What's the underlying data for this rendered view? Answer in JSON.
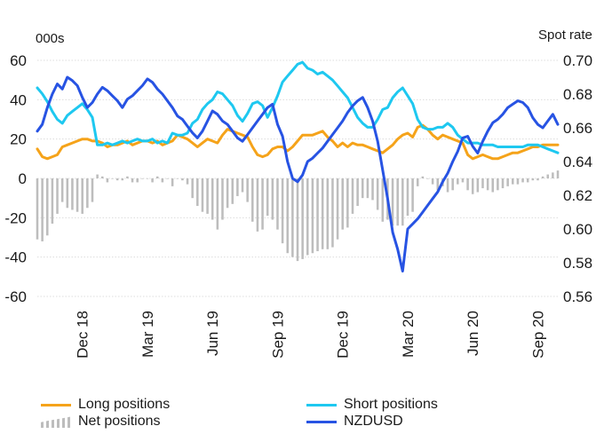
{
  "chart_data": {
    "type": "line",
    "left_axis": {
      "unit_label": "000s",
      "ticks": [
        60,
        40,
        20,
        0,
        -20,
        -40,
        -60
      ],
      "ylim": [
        -60,
        60
      ]
    },
    "right_axis": {
      "unit_label": "Spot rate",
      "ticks": [
        "0.70",
        "0.68",
        "0.66",
        "0.64",
        "0.62",
        "0.60",
        "0.58",
        "0.56"
      ],
      "ylim": [
        0.56,
        0.7
      ]
    },
    "x_labels": [
      "Dec 18",
      "Mar 19",
      "Jun 19",
      "Sep 19",
      "Dec 19",
      "Mar 20",
      "Jun 20",
      "Sep 20"
    ],
    "x_label_index": [
      9,
      22,
      35,
      48,
      61,
      74,
      87,
      100
    ],
    "n_points": 105,
    "series": [
      {
        "name": "Long positions",
        "color": "#f5a31a",
        "axis": "left",
        "kind": "line",
        "values": [
          15,
          11,
          10,
          11,
          12,
          16,
          17,
          18,
          19,
          20,
          20,
          19,
          19,
          18,
          16,
          17,
          17,
          18,
          19,
          17,
          18,
          19,
          19,
          18,
          19,
          17,
          18,
          19,
          22,
          21,
          20,
          18,
          16,
          18,
          20,
          19,
          18,
          22,
          25,
          24,
          23,
          22,
          21,
          16,
          12,
          11,
          12,
          15,
          16,
          16,
          14,
          16,
          19,
          22,
          22,
          22,
          23,
          24,
          21,
          19,
          16,
          18,
          16,
          18,
          17,
          17,
          16,
          15,
          14,
          13,
          15,
          17,
          20,
          22,
          23,
          21,
          26,
          27,
          25,
          22,
          20,
          22,
          21,
          20,
          19,
          18,
          12,
          10,
          11,
          12,
          11,
          10,
          10,
          11,
          12,
          13,
          13,
          14,
          15,
          16,
          16,
          17,
          17,
          17,
          17
        ]
      },
      {
        "name": "Short positions",
        "color": "#1ec8f0",
        "axis": "left",
        "kind": "line",
        "values": [
          46,
          43,
          39,
          34,
          30,
          28,
          32,
          34,
          36,
          38,
          35,
          31,
          17,
          17,
          18,
          17,
          18,
          19,
          18,
          19,
          20,
          19,
          19,
          20,
          18,
          19,
          18,
          23,
          22,
          22,
          23,
          28,
          30,
          35,
          38,
          40,
          44,
          43,
          40,
          37,
          32,
          29,
          33,
          38,
          39,
          37,
          31,
          36,
          42,
          49,
          52,
          55,
          58,
          59,
          56,
          55,
          53,
          54,
          52,
          50,
          47,
          44,
          41,
          36,
          31,
          28,
          26,
          26,
          30,
          35,
          36,
          41,
          44,
          46,
          42,
          38,
          30,
          26,
          25,
          25,
          26,
          26,
          28,
          26,
          22,
          20,
          18,
          18,
          18,
          17,
          17,
          17,
          16,
          16,
          16,
          16,
          16,
          16,
          17,
          17,
          17,
          16,
          15,
          14,
          13
        ]
      },
      {
        "name": "Net positions",
        "color": "#bdbdbd",
        "axis": "left",
        "kind": "bars",
        "values": [
          -31,
          -32,
          -29,
          -23,
          -18,
          -12,
          -15,
          -16,
          -17,
          -18,
          -15,
          -12,
          2,
          1,
          -2,
          0,
          -1,
          -1,
          1,
          -2,
          -2,
          0,
          0,
          -2,
          1,
          -2,
          0,
          -4,
          0,
          -1,
          -3,
          -10,
          -14,
          -17,
          -18,
          -21,
          -26,
          -21,
          -15,
          -13,
          -9,
          -7,
          -12,
          -22,
          -27,
          -26,
          -19,
          -21,
          -26,
          -33,
          -38,
          -40,
          -42,
          -41,
          -39,
          -38,
          -37,
          -36,
          -36,
          -35,
          -31,
          -26,
          -25,
          -18,
          -14,
          -10,
          -10,
          -11,
          -16,
          -22,
          -21,
          -24,
          -24,
          -24,
          -19,
          -17,
          -4,
          1,
          0,
          -3,
          -6,
          -4,
          -7,
          -6,
          -3,
          -2,
          -6,
          -8,
          -7,
          -5,
          -6,
          -7,
          -6,
          -5,
          -4,
          -3,
          -3,
          -2,
          -2,
          -1,
          -1,
          1,
          2,
          3,
          4
        ]
      },
      {
        "name": "NZDUSD",
        "color": "#2753e3",
        "axis": "right",
        "kind": "line",
        "values": [
          0.658,
          0.662,
          0.672,
          0.68,
          0.686,
          0.683,
          0.69,
          0.688,
          0.685,
          0.678,
          0.672,
          0.675,
          0.68,
          0.684,
          0.682,
          0.679,
          0.676,
          0.672,
          0.677,
          0.679,
          0.682,
          0.685,
          0.689,
          0.687,
          0.683,
          0.68,
          0.676,
          0.672,
          0.667,
          0.665,
          0.661,
          0.657,
          0.654,
          0.658,
          0.664,
          0.67,
          0.668,
          0.664,
          0.662,
          0.658,
          0.654,
          0.652,
          0.656,
          0.66,
          0.664,
          0.668,
          0.672,
          0.674,
          0.662,
          0.655,
          0.64,
          0.63,
          0.628,
          0.632,
          0.64,
          0.642,
          0.645,
          0.648,
          0.652,
          0.656,
          0.66,
          0.664,
          0.669,
          0.673,
          0.676,
          0.678,
          0.672,
          0.664,
          0.652,
          0.635,
          0.618,
          0.598,
          0.588,
          0.575,
          0.6,
          0.603,
          0.606,
          0.61,
          0.614,
          0.618,
          0.622,
          0.628,
          0.633,
          0.64,
          0.646,
          0.654,
          0.655,
          0.649,
          0.645,
          0.652,
          0.658,
          0.663,
          0.665,
          0.668,
          0.672,
          0.674,
          0.676,
          0.675,
          0.672,
          0.666,
          0.662,
          0.66,
          0.664,
          0.668,
          0.662
        ]
      }
    ],
    "legend_position": "bottom"
  },
  "legend": {
    "long_label": "Long positions",
    "short_label": "Short positions",
    "net_label": "Net positions",
    "nzdusd_label": "NZDUSD"
  }
}
